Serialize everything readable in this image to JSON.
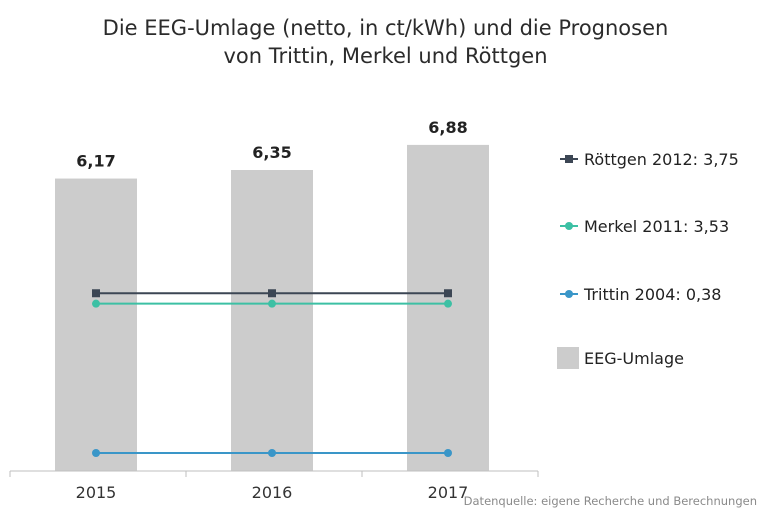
{
  "chart_data": {
    "type": "bar",
    "title_lines": [
      "Die EEG-Umlage (netto, in ct/kWh) und die Prognosen",
      "von Trittin, Merkel und Röttgen"
    ],
    "categories": [
      "2015",
      "2016",
      "2017"
    ],
    "bar_series": {
      "name": "EEG-Umlage",
      "values": [
        6.17,
        6.35,
        6.88
      ],
      "value_labels": [
        "6,17",
        "6,35",
        "6,88"
      ],
      "color": "#cccccc"
    },
    "line_series": [
      {
        "name": "Röttgen 2012: 3,75",
        "value": 3.75,
        "color": "#3c4654",
        "marker": "square"
      },
      {
        "name": "Merkel 2011: 3,53",
        "value": 3.53,
        "color": "#3cc0a4",
        "marker": "circle"
      },
      {
        "name": "Trittin 2004: 0,38",
        "value": 0.38,
        "color": "#3a96c8",
        "marker": "circle"
      }
    ],
    "legend_order": [
      "Röttgen 2012: 3,75",
      "Merkel 2011: 3,53",
      "Trittin 2004: 0,38",
      "EEG-Umlage"
    ],
    "legend_position": "right",
    "ylim": [
      0,
      7.5
    ],
    "grid": false,
    "source": "Datenquelle: eigene Recherche und Berechnungen"
  }
}
